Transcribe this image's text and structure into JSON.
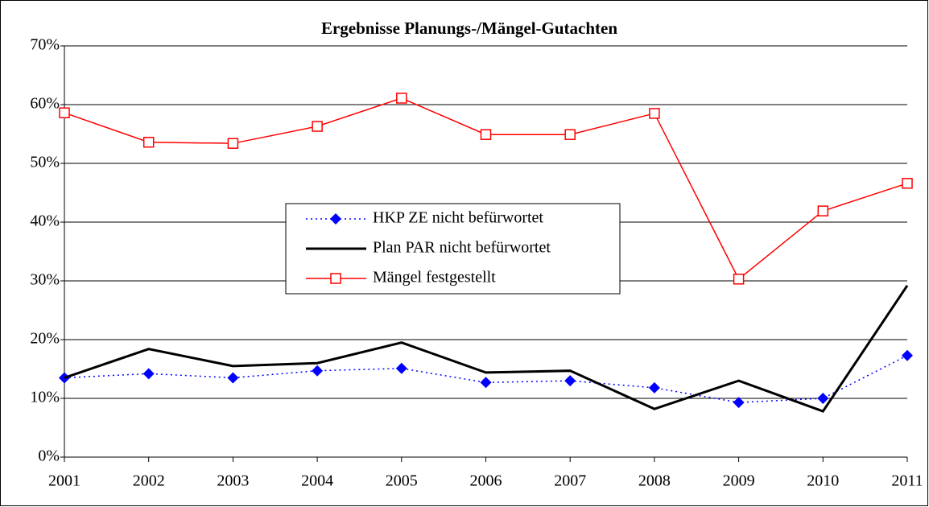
{
  "chart_data": {
    "type": "line",
    "title": "Ergebnisse Planungs-/Mängel-Gutachten",
    "categories": [
      "2001",
      "2002",
      "2003",
      "2004",
      "2005",
      "2006",
      "2007",
      "2008",
      "2009",
      "2010",
      "2011"
    ],
    "series": [
      {
        "name": "HKP ZE nicht befürwortet",
        "color": "#0000ff",
        "values": [
          13.5,
          14.2,
          13.5,
          14.7,
          15.1,
          12.7,
          13.0,
          11.8,
          9.3,
          10.0,
          17.3
        ]
      },
      {
        "name": "Plan PAR nicht befürwortet",
        "color": "#000000",
        "values": [
          13.5,
          18.4,
          15.5,
          16.0,
          19.5,
          14.4,
          14.7,
          8.2,
          13.0,
          7.8,
          29.2
        ]
      },
      {
        "name": "Mängel festgestellt",
        "color": "#ff0000",
        "values": [
          58.6,
          53.6,
          53.4,
          56.3,
          61.1,
          54.9,
          54.9,
          58.5,
          30.3,
          41.9,
          46.6
        ]
      }
    ],
    "ylim": [
      0,
      70
    ],
    "yticks": [
      {
        "value": 0,
        "label": "0%"
      },
      {
        "value": 10,
        "label": "10%"
      },
      {
        "value": 20,
        "label": "20%"
      },
      {
        "value": 30,
        "label": "30%"
      },
      {
        "value": 40,
        "label": "40%"
      },
      {
        "value": 50,
        "label": "50%"
      },
      {
        "value": 60,
        "label": "60%"
      },
      {
        "value": 70,
        "label": "70%"
      }
    ],
    "grid": true
  }
}
